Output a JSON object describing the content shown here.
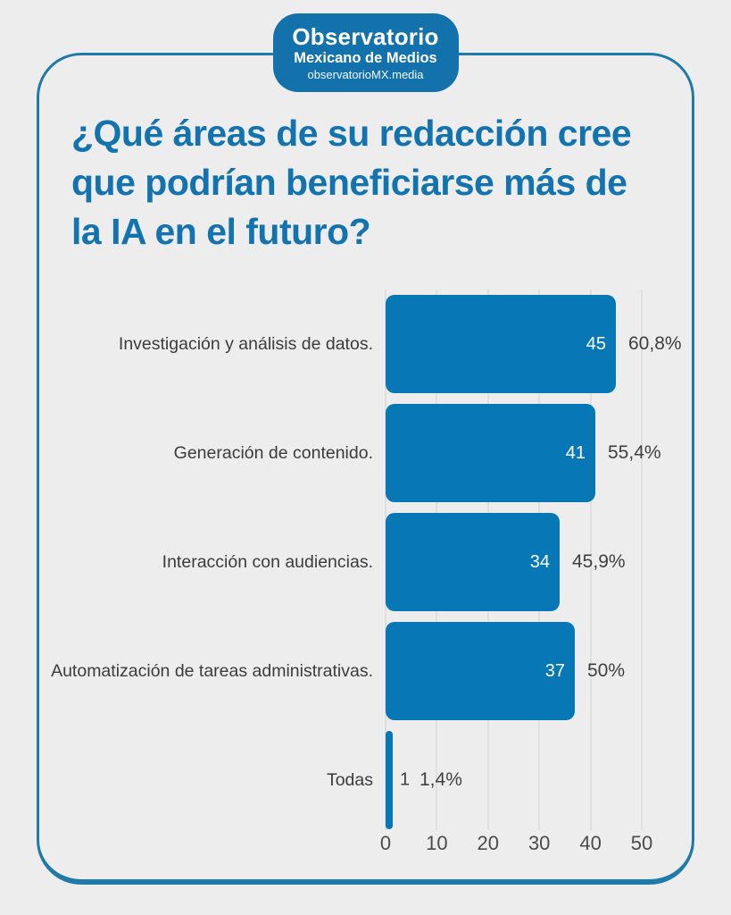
{
  "header": {
    "logo": {
      "title": "Observatorio",
      "subtitle": "Mexicano de Medios",
      "url": "observatorioMX.media"
    }
  },
  "title_lines": [
    "¿Qué áreas de su redacción cree",
    "que podrían beneficiarse más de",
    "la IA en el futuro?"
  ],
  "chart_data": {
    "type": "bar",
    "orientation": "horizontal",
    "title": "¿Qué áreas de su redacción cree que podrían beneficiarse más de la IA en el futuro?",
    "categories": [
      "Investigación y análisis de datos.",
      "Generación de contenido.",
      "Interacción con audiencias.",
      "Automatización de tareas administrativas.",
      "Todas"
    ],
    "values": [
      45,
      41,
      34,
      37,
      1
    ],
    "value_labels": [
      "45",
      "41",
      "34",
      "37",
      "1"
    ],
    "percent_labels": [
      "60,8%",
      "55,4%",
      "45,9%",
      "50%",
      "1,4%"
    ],
    "x_ticks": [
      "0",
      "10",
      "20",
      "30",
      "40",
      "50"
    ],
    "xlim": [
      0,
      50
    ],
    "grid": true,
    "legend": false,
    "bar_color": "#0777b5"
  },
  "colors": {
    "background": "#ededed",
    "card_border": "#1f7aaa",
    "badge_bg": "#1372ac",
    "title": "#1273ae",
    "bar": "#0777b5",
    "category_label": "#3c3c3c",
    "tick_label": "#4b4b4b",
    "percent_label": "#3f3f3f",
    "value_in_bar": "#ffffff",
    "gridline": "#dfdfdf"
  }
}
